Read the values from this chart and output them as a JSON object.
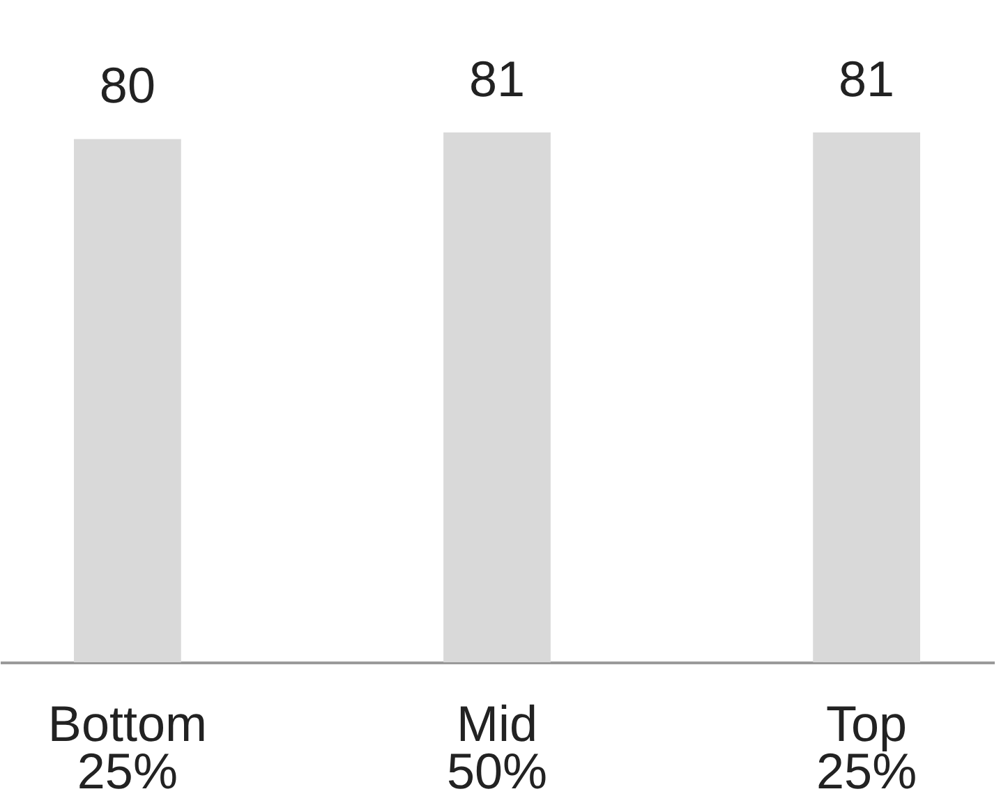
{
  "chart_data": {
    "type": "bar",
    "categories": [
      "Bottom\n25%",
      "Mid\n50%",
      "Top\n25%"
    ],
    "values": [
      80,
      81,
      81
    ],
    "color": "#d9d9d9",
    "data_labels": true
  }
}
